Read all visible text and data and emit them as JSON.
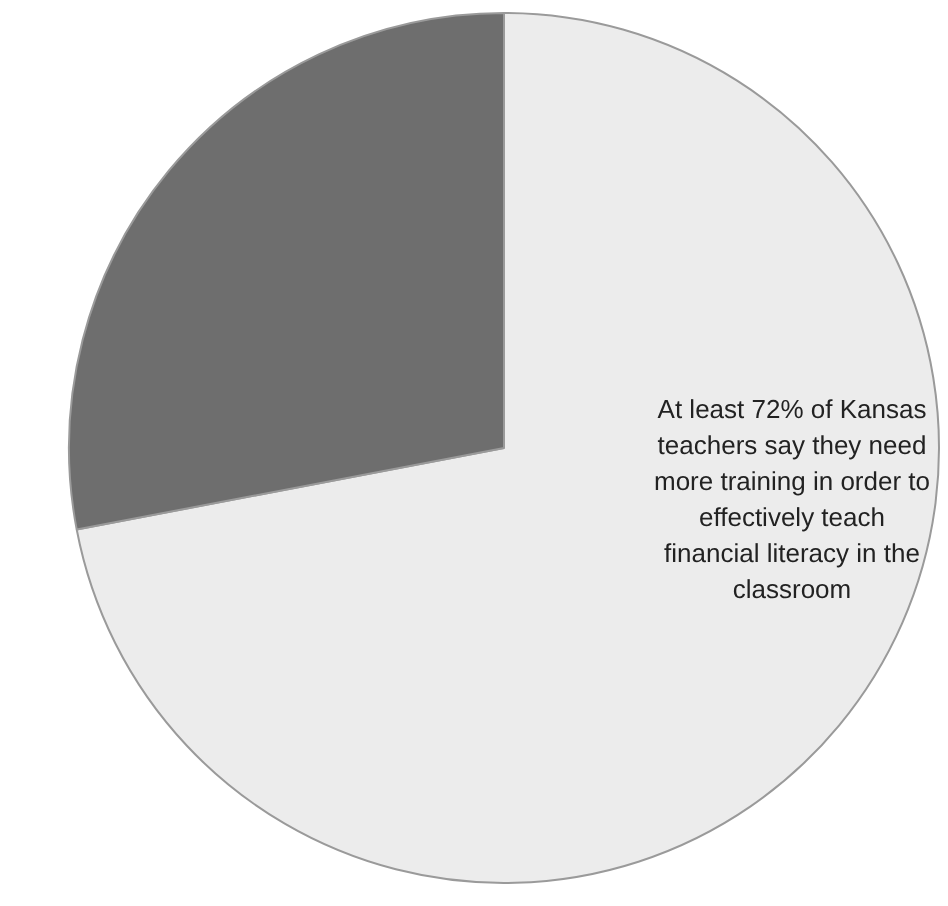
{
  "chart_data": {
    "type": "pie",
    "categories": [
      null,
      null
    ],
    "values": [
      72,
      28
    ],
    "colors": [
      "#ececec",
      "#6e6e6e"
    ],
    "annotations": [
      "At least 72% of Kansas teachers say they need more training in order to effectively teach financial literacy in the classroom"
    ],
    "legend": false
  }
}
